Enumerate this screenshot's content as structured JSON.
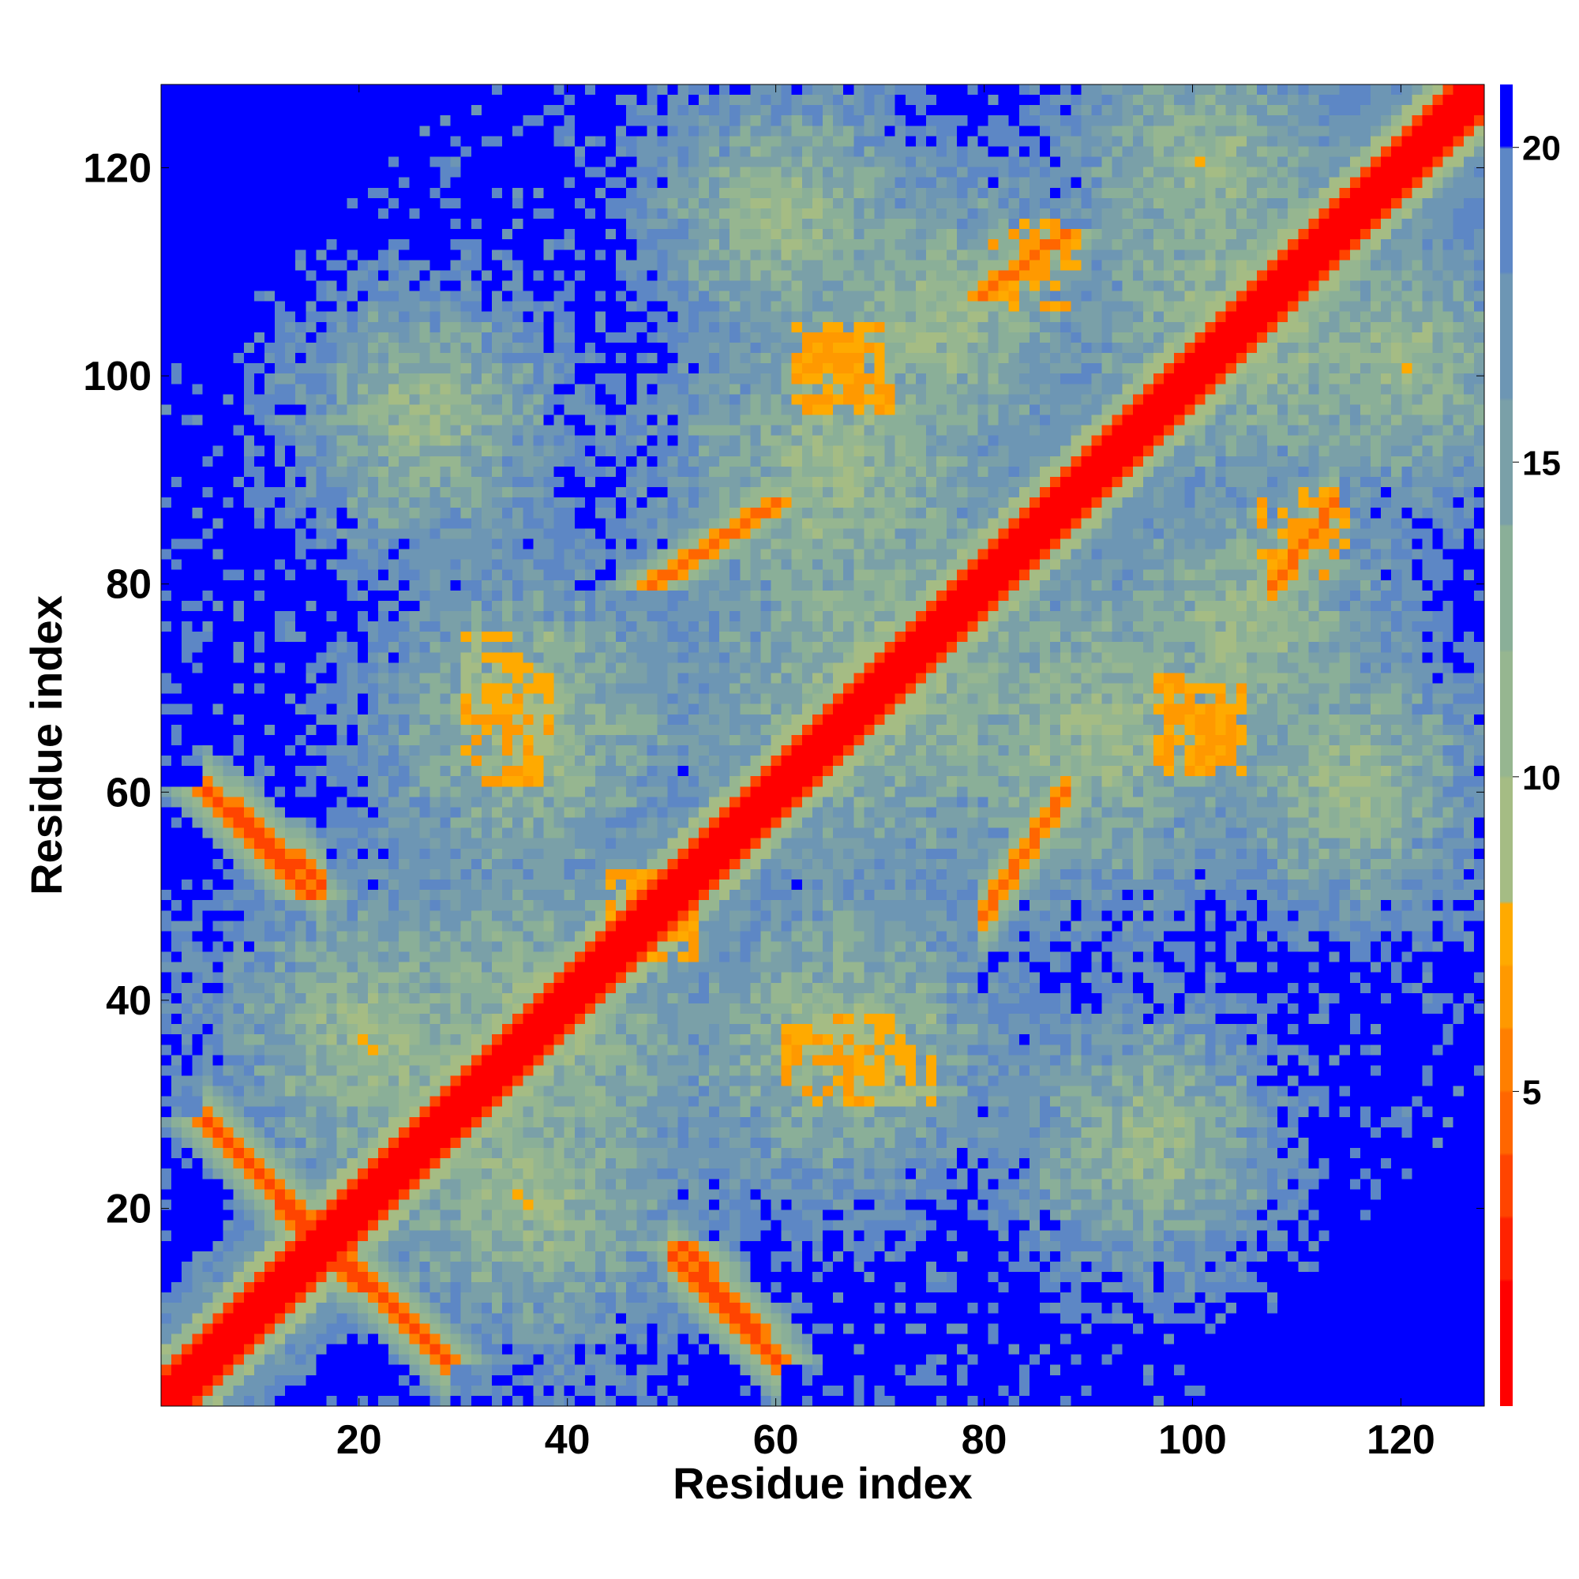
{
  "chart_data": {
    "type": "heatmap",
    "title": "",
    "xlabel": "Residue index",
    "ylabel": "Residue index",
    "xlim": [
      1,
      128
    ],
    "ylim": [
      1,
      128
    ],
    "x_ticks": [
      20,
      40,
      60,
      80,
      100,
      120
    ],
    "y_ticks": [
      20,
      40,
      60,
      80,
      100,
      120
    ],
    "grid": false,
    "symmetric": true,
    "colorbar": {
      "min": 0,
      "max": 21,
      "ticks": [
        5,
        10,
        15,
        20
      ],
      "levels": [
        {
          "upto": 2,
          "color": "#ff0000"
        },
        {
          "upto": 3,
          "color": "#ff2200"
        },
        {
          "upto": 4,
          "color": "#ff4400"
        },
        {
          "upto": 5,
          "color": "#ff6600"
        },
        {
          "upto": 6,
          "color": "#ff7f00"
        },
        {
          "upto": 7,
          "color": "#ff9900"
        },
        {
          "upto": 8,
          "color": "#ffaa00"
        },
        {
          "upto": 10,
          "color": "#a5bc84"
        },
        {
          "upto": 12,
          "color": "#96b690"
        },
        {
          "upto": 14,
          "color": "#8aaf98"
        },
        {
          "upto": 16,
          "color": "#7aa0a8"
        },
        {
          "upto": 18,
          "color": "#6d96b4"
        },
        {
          "upto": 20,
          "color": "#5d87c5"
        },
        {
          "upto": 21,
          "color": "#0000ff"
        }
      ]
    },
    "features": {
      "diagonal": {
        "value": 1,
        "halfwidth_residues": 3
      },
      "antiparallel_contacts": [
        {
          "i": [
            5,
            27
          ],
          "j": [
            28,
            6
          ],
          "value": 4
        },
        {
          "i": [
            14,
            28
          ],
          "j": [
            18,
            5
          ],
          "value": 4
        },
        {
          "i": [
            5,
            15
          ],
          "j": [
            60,
            50
          ],
          "value": 4
        },
        {
          "i": [
            51,
            60
          ],
          "j": [
            16,
            5
          ],
          "value": 4
        }
      ],
      "parallel_contacts": [
        {
          "i": [
            48,
            60
          ],
          "j": [
            80,
            88
          ],
          "value": 5
        },
        {
          "i": [
            80,
            88
          ],
          "j": [
            108,
            114
          ],
          "value": 5
        }
      ],
      "contact_clusters": [
        {
          "i": 67,
          "j": 101,
          "value": 6
        },
        {
          "i": 34,
          "j": 65,
          "value": 6
        },
        {
          "i": 101,
          "j": 66,
          "value": 6
        },
        {
          "i": 111,
          "j": 85,
          "value": 6
        },
        {
          "i": 71,
          "j": 34,
          "value": 7
        },
        {
          "i": 48,
          "j": 48,
          "value": 6
        }
      ]
    }
  }
}
